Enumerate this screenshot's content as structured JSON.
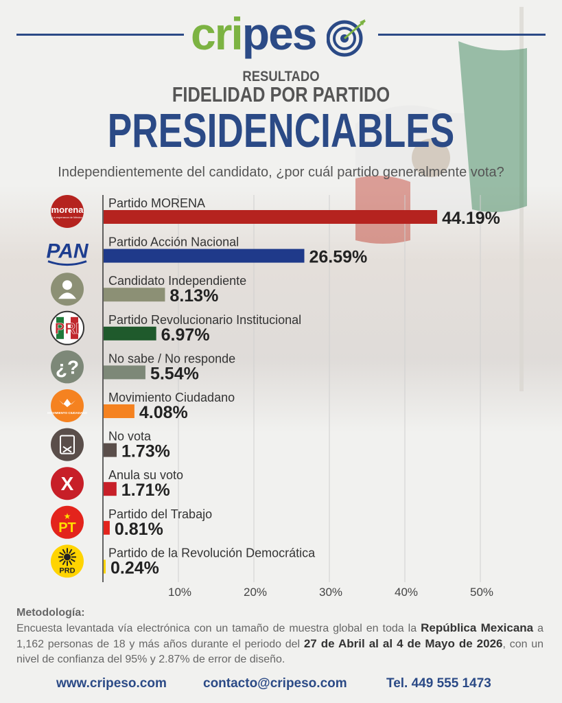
{
  "brand": {
    "name_part1": "cripes",
    "name_part2": "o"
  },
  "titles": {
    "result": "RESULTADO",
    "subtitle": "FIDELIDAD POR PARTIDO",
    "main": "PRESIDENCIABLES",
    "question": "Independientemente del candidato, ¿por cuál partido generalmente vota?"
  },
  "icons": [
    {
      "name": "morena-logo-icon",
      "bg": "#b5231f",
      "text": "morena",
      "sub": "La esperanza de México",
      "fg": "#ffffff"
    },
    {
      "name": "pan-logo-icon",
      "bg": "#ffffff",
      "text": "PAN",
      "fg": "#1d3d8f"
    },
    {
      "name": "person-icon",
      "bg": "#8c9075",
      "text": "",
      "fg": "#ffffff"
    },
    {
      "name": "pri-logo-icon",
      "bg": "#ffffff",
      "text": "PRI",
      "fg": "#c0272d"
    },
    {
      "name": "question-icon",
      "bg": "#7d8878",
      "text": "¿?",
      "fg": "#ffffff"
    },
    {
      "name": "mc-logo-icon",
      "bg": "#f58220",
      "text": "MOVIMIENTO CIUDADANO",
      "fg": "#ffffff"
    },
    {
      "name": "ballot-icon",
      "bg": "#5a4e4a",
      "text": "",
      "fg": "#ffffff"
    },
    {
      "name": "cross-icon",
      "bg": "#c71f28",
      "text": "X",
      "fg": "#ffffff"
    },
    {
      "name": "pt-logo-icon",
      "bg": "#e3241c",
      "text": "PT",
      "fg": "#ffe000"
    },
    {
      "name": "prd-logo-icon",
      "bg": "#ffd400",
      "text": "PRD",
      "fg": "#222222"
    }
  ],
  "chart_data": {
    "type": "bar",
    "orientation": "horizontal",
    "categories": [
      "Partido MORENA",
      "Partido Acción Nacional",
      "Candidato Independiente",
      "Partido Revolucionario Institucional",
      "No sabe / No responde",
      "Movimiento Ciudadano",
      "No vota",
      "Anula su voto",
      "Partido del Trabajo",
      "Partido de la Revolución Democrática"
    ],
    "values": [
      44.19,
      26.59,
      8.13,
      6.97,
      5.54,
      4.08,
      1.73,
      1.71,
      0.81,
      0.24
    ],
    "value_labels": [
      "44.19%",
      "26.59%",
      "8.13%",
      "6.97%",
      "5.54%",
      "4.08%",
      "1.73%",
      "1.71%",
      "0.81%",
      "0.24%"
    ],
    "colors": [
      "#b5231f",
      "#1f3a8a",
      "#8c9075",
      "#1f5a2c",
      "#7d8878",
      "#f58220",
      "#5a4e4a",
      "#c71f28",
      "#e3241c",
      "#ffd400"
    ],
    "xlim": [
      0,
      50
    ],
    "xticks": [
      10,
      20,
      30,
      40,
      50
    ],
    "xtick_labels": [
      "10%",
      "20%",
      "30%",
      "40%",
      "50%"
    ],
    "grid": true
  },
  "methodology": {
    "title": "Metodología:",
    "p1": "Encuesta levantada vía electrónica con un tamaño de muestra global en toda la ",
    "b1": "República Mexicana",
    "p2": " a 1,162 personas de 18 y más años durante el periodo del ",
    "b2": "27 de Abril al al 4 de Mayo de 2026",
    "p3": ", con un nivel de confianza del 95% y 2.87% de error de diseño."
  },
  "footer": {
    "website": "www.cripeso.com",
    "email": "contacto@cripeso.com",
    "phone": "Tel. 449 555 1473"
  }
}
